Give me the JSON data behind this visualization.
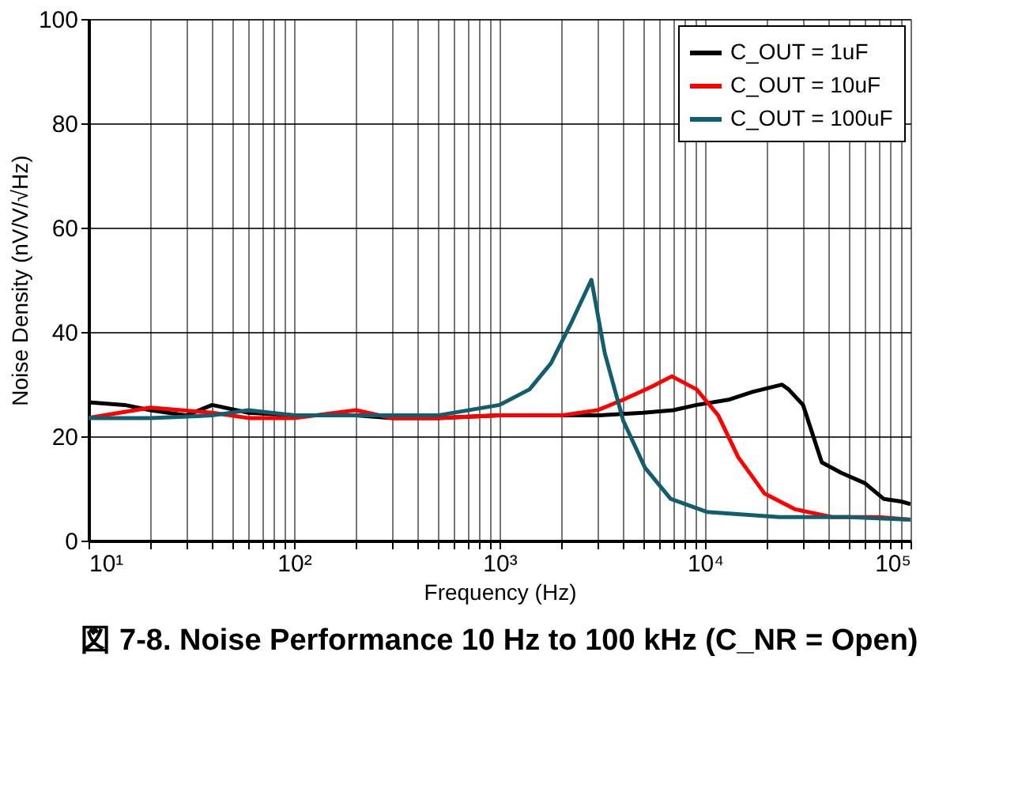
{
  "chart_data": {
    "type": "line",
    "title": "図 7-8. Noise Performance 10 Hz to 100 kHz (C_NR = Open)",
    "xlabel": "Frequency (Hz)",
    "ylabel": "Noise Density (nV/V/√Hz)",
    "log": "x",
    "grid": true,
    "legend": "top right",
    "line_style": "solid",
    "marker": "none",
    "xlim": [
      10,
      100000
    ],
    "ylim": [
      0,
      100
    ],
    "yticks": [
      0,
      20,
      40,
      60,
      80,
      100
    ],
    "xticks": [
      {
        "value": 10,
        "label": "10¹"
      },
      {
        "value": 20,
        "label": null
      },
      {
        "value": 30,
        "label": null
      },
      {
        "value": 40,
        "label": null
      },
      {
        "value": 50,
        "label": null
      },
      {
        "value": 60,
        "label": null
      },
      {
        "value": 70,
        "label": null
      },
      {
        "value": 80,
        "label": null
      },
      {
        "value": 90,
        "label": null
      },
      {
        "value": 100,
        "label": "10²"
      },
      {
        "value": 200,
        "label": null
      },
      {
        "value": 300,
        "label": null
      },
      {
        "value": 400,
        "label": null
      },
      {
        "value": 500,
        "label": null
      },
      {
        "value": 600,
        "label": null
      },
      {
        "value": 700,
        "label": null
      },
      {
        "value": 800,
        "label": null
      },
      {
        "value": 900,
        "label": null
      },
      {
        "value": 1000,
        "label": "10³"
      },
      {
        "value": 2000,
        "label": null
      },
      {
        "value": 3000,
        "label": null
      },
      {
        "value": 4000,
        "label": null
      },
      {
        "value": 5000,
        "label": null
      },
      {
        "value": 6000,
        "label": null
      },
      {
        "value": 7000,
        "label": null
      },
      {
        "value": 8000,
        "label": null
      },
      {
        "value": 9000,
        "label": null
      },
      {
        "value": 10000,
        "label": "10⁴"
      },
      {
        "value": 20000,
        "label": null
      },
      {
        "value": 30000,
        "label": null
      },
      {
        "value": 40000,
        "label": null
      },
      {
        "value": 50000,
        "label": null
      },
      {
        "value": 60000,
        "label": null
      },
      {
        "value": 70000,
        "label": null
      },
      {
        "value": 80000,
        "label": null
      },
      {
        "value": 90000,
        "label": null
      },
      {
        "value": 100000,
        "label": "10⁵"
      }
    ],
    "series": [
      {
        "name": "C_OUT = 1uF",
        "color": "#000000",
        "x": [
          10,
          15,
          20,
          30,
          40,
          60,
          100,
          200,
          300,
          500,
          1000,
          2000,
          3000,
          5000,
          7000,
          9100,
          13000,
          17000,
          23700,
          25500,
          30000,
          33000,
          37000,
          46000,
          60000,
          74000,
          90000,
          100000
        ],
        "values": [
          26.5,
          26,
          25,
          24,
          26,
          24.5,
          24,
          24,
          23.5,
          23.5,
          24,
          24,
          24,
          24.5,
          25,
          26,
          27,
          28.5,
          29.9,
          29,
          26,
          21,
          15,
          13,
          11,
          8,
          7.5,
          7
        ]
      },
      {
        "name": "C_OUT = 10uF",
        "color": "#ff0000",
        "x": [
          10,
          20,
          40,
          60,
          100,
          200,
          300,
          500,
          1000,
          2000,
          3000,
          4000,
          5500,
          6900,
          9100,
          11600,
          14500,
          19500,
          27500,
          41500,
          70000,
          100000
        ],
        "values": [
          23.5,
          25.5,
          24.5,
          23.5,
          23.5,
          25,
          23.5,
          23.5,
          24,
          24,
          25,
          27,
          29.5,
          31.5,
          29,
          24,
          16,
          9,
          6,
          4.5,
          4.5,
          4
        ]
      },
      {
        "name": "C_OUT = 100uF",
        "color": "#135e6c",
        "x": [
          10,
          20,
          40,
          60,
          100,
          200,
          300,
          500,
          1000,
          1400,
          1780,
          2250,
          2800,
          3250,
          4000,
          5100,
          6800,
          10200,
          23000,
          50000,
          100000
        ],
        "values": [
          23.5,
          23.5,
          24,
          25,
          24,
          24,
          24,
          24,
          26,
          29,
          34,
          42,
          50,
          36,
          23,
          14,
          8,
          5.5,
          4.5,
          4.5,
          4
        ]
      }
    ]
  }
}
